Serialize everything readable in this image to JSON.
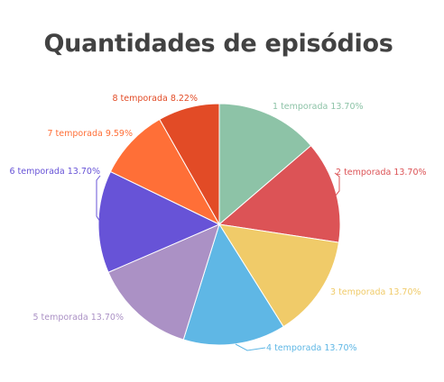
{
  "chart_data": {
    "type": "pie",
    "title": "Quantidades de episódios",
    "slices": [
      {
        "label": "1 temporada 13.70%",
        "value": 13.7,
        "color": "#8dc3a7"
      },
      {
        "label": "2 temporada 13.70%",
        "value": 13.7,
        "color": "#dc5356"
      },
      {
        "label": "3 temporada 13.70%",
        "value": 13.7,
        "color": "#f0cb69"
      },
      {
        "label": "4 temporada 13.70%",
        "value": 13.7,
        "color": "#5fb7e5"
      },
      {
        "label": "5 temporada 13.70%",
        "value": 13.7,
        "color": "#ab91c5"
      },
      {
        "label": "6 temporada 13.70%",
        "value": 13.7,
        "color": "#6753d7"
      },
      {
        "label": "7 temporada 9.59%",
        "value": 9.59,
        "color": "#ff6f37"
      },
      {
        "label": "8 temporada 8.22%",
        "value": 8.22,
        "color": "#e24b26"
      }
    ]
  }
}
